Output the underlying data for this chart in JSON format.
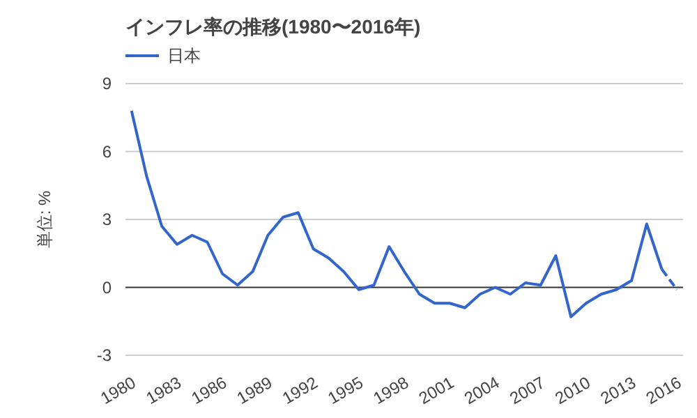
{
  "chart_data": {
    "type": "line",
    "title": "インフレ率の推移(1980〜2016年)",
    "ylabel": "単位: %",
    "x": [
      1980,
      1981,
      1982,
      1983,
      1984,
      1985,
      1986,
      1987,
      1988,
      1989,
      1990,
      1991,
      1992,
      1993,
      1994,
      1995,
      1996,
      1997,
      1998,
      1999,
      2000,
      2001,
      2002,
      2003,
      2004,
      2005,
      2006,
      2007,
      2008,
      2009,
      2010,
      2011,
      2012,
      2013,
      2014,
      2015
    ],
    "series": [
      {
        "name": "日本",
        "color": "#3366cc",
        "line_style": "solid",
        "values": [
          7.8,
          4.9,
          2.7,
          1.9,
          2.3,
          2.0,
          0.6,
          0.1,
          0.7,
          2.3,
          3.1,
          3.3,
          1.7,
          1.3,
          0.7,
          -0.1,
          0.1,
          1.8,
          0.7,
          -0.3,
          -0.7,
          -0.7,
          -0.9,
          -0.3,
          0.0,
          -0.3,
          0.2,
          0.1,
          1.4,
          -1.3,
          -0.7,
          -0.3,
          -0.1,
          0.3,
          2.8,
          0.8
        ]
      },
      {
        "color": "#3366cc",
        "line_style": "dashed",
        "x": [
          2015,
          2016
        ],
        "values": [
          0.8,
          -0.1
        ]
      }
    ],
    "xlim": [
      1979.6,
      2016.4
    ],
    "xticks": [
      1980,
      1983,
      1986,
      1989,
      1992,
      1995,
      1998,
      2001,
      2004,
      2007,
      2010,
      2013,
      2016
    ],
    "ylim": [
      -3,
      9
    ],
    "yticks": [
      -3,
      0,
      3,
      6,
      9
    ],
    "grid": "y",
    "legend": "top left"
  }
}
